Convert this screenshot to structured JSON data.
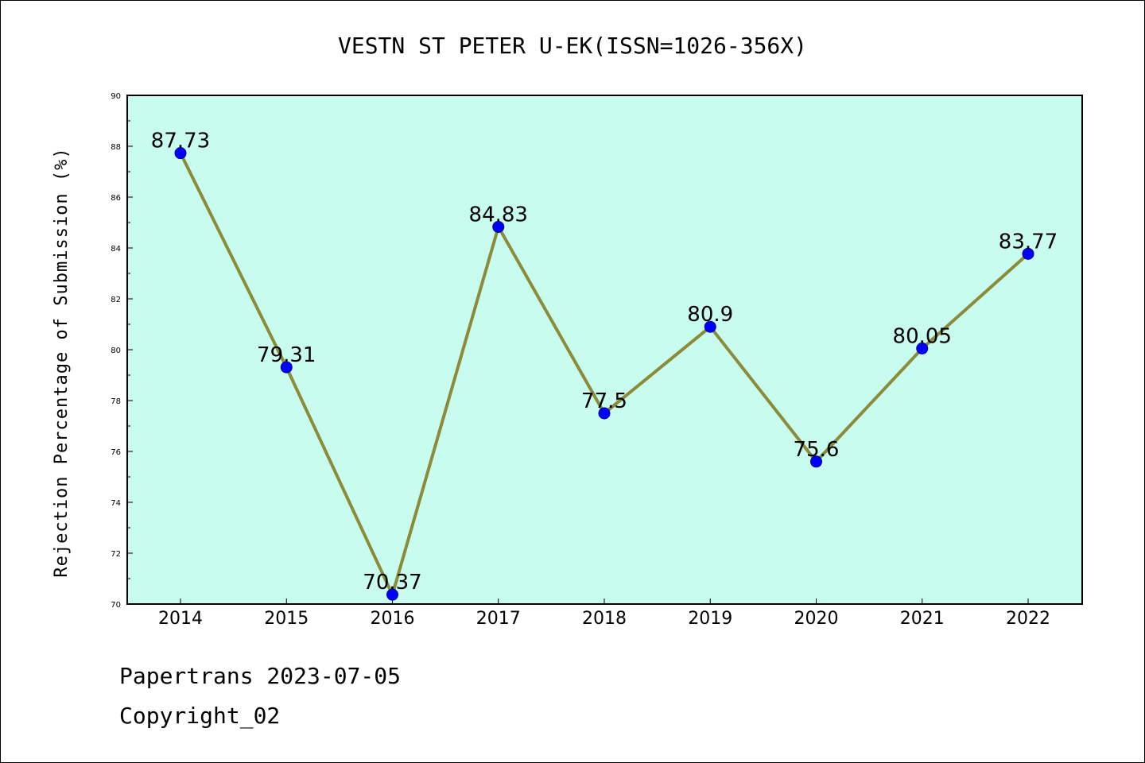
{
  "chart_data": {
    "type": "line",
    "title": "VESTN ST PETER U-EK(ISSN=1026-356X)",
    "ylabel": "Rejection Percentage of Submission (%)",
    "xlabel": "",
    "categories": [
      "2014",
      "2015",
      "2016",
      "2017",
      "2018",
      "2019",
      "2020",
      "2021",
      "2022"
    ],
    "values": [
      87.73,
      79.31,
      70.37,
      84.83,
      77.5,
      80.9,
      75.6,
      80.05,
      83.77
    ],
    "data_labels": [
      "87.73",
      "79.31",
      "70.37",
      "84.83",
      "77.5",
      "80.9",
      "75.6",
      "80.05",
      "83.77"
    ],
    "ylim": [
      70,
      90
    ],
    "yticks": [
      "70",
      "72",
      "74",
      "76",
      "78",
      "80",
      "82",
      "84",
      "86",
      "88",
      "90"
    ],
    "grid": false,
    "legend": "none",
    "colors": {
      "plot_background": "#c8fcee",
      "line": "#8b8b3a",
      "marker": "#0000ff",
      "marker_edge": "#00008b"
    }
  },
  "footer": {
    "line1": "Papertrans 2023-07-05",
    "line2": "Copyright_02"
  }
}
